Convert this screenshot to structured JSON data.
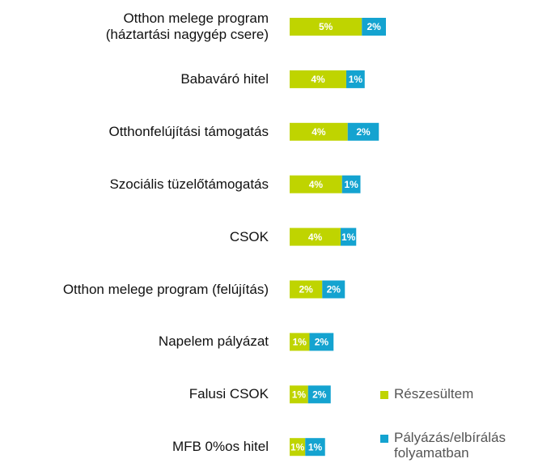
{
  "chart_data": {
    "type": "stacked-bar-horizontal",
    "categories": [
      "Otthon melege program\n(háztartási nagygép csere)",
      "Babaváró hitel",
      "Otthonfelújítási támogatás",
      "Szociális tüzelőtámogatás",
      "CSOK",
      "Otthon melege program (felújítás)",
      "Napelem pályázat",
      "Falusi CSOK",
      "MFB 0%os hitel"
    ],
    "series": [
      {
        "name": "Részesültem",
        "color": "#bfd400",
        "values": [
          5.1,
          4.0,
          4.1,
          3.7,
          3.6,
          2.3,
          1.4,
          1.3,
          1.1
        ],
        "value_labels": [
          "5%",
          "4%",
          "4%",
          "4%",
          "4%",
          "2%",
          "1%",
          "1%",
          "1%"
        ]
      },
      {
        "name": "Pályázás/elbírálás\nfolyamatban",
        "color": "#14a3d0",
        "values": [
          1.7,
          1.3,
          2.2,
          1.3,
          1.1,
          1.6,
          1.7,
          1.6,
          1.4
        ],
        "value_labels": [
          "2%",
          "1%",
          "2%",
          "1%",
          "1%",
          "2%",
          "2%",
          "2%",
          "1%"
        ]
      }
    ],
    "legend": "bottom-right"
  }
}
